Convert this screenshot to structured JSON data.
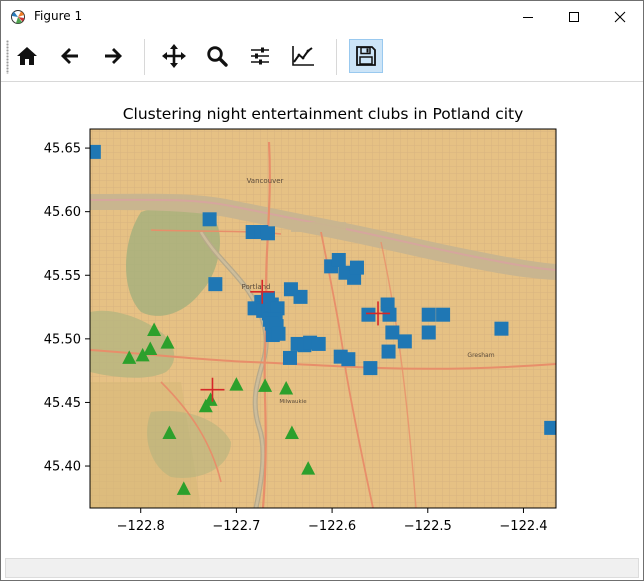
{
  "window": {
    "title": "Figure 1",
    "minimize_icon": "minimize-icon",
    "maximize_icon": "maximize-icon",
    "close_icon": "close-icon"
  },
  "toolbar": {
    "buttons": [
      {
        "name": "home-button",
        "icon": "home-icon",
        "tooltip": "Reset original view"
      },
      {
        "name": "back-button",
        "icon": "arrow-left-icon",
        "tooltip": "Back to previous view"
      },
      {
        "name": "forward-button",
        "icon": "arrow-right-icon",
        "tooltip": "Forward to next view"
      },
      {
        "name": "pan-button",
        "icon": "move-icon",
        "tooltip": "Pan axes"
      },
      {
        "name": "zoom-button",
        "icon": "magnifier-icon",
        "tooltip": "Zoom to rectangle"
      },
      {
        "name": "subplots-button",
        "icon": "sliders-icon",
        "tooltip": "Configure subplots"
      },
      {
        "name": "edit-curve-button",
        "icon": "line-chart-icon",
        "tooltip": "Edit axis, curve and image parameters"
      },
      {
        "name": "save-button",
        "icon": "floppy-disk-icon",
        "tooltip": "Save the figure"
      }
    ]
  },
  "map": {
    "labels": [
      "Vancouver",
      "Portland",
      "Milwaukie",
      "Gresham"
    ]
  },
  "chart_data": {
    "type": "scatter",
    "title": "Clustering night entertainment clubs in Potland city",
    "xlabel": "",
    "ylabel": "",
    "xlim": [
      -122.853,
      -122.366
    ],
    "ylim": [
      45.367,
      45.665
    ],
    "xticks": [
      -122.8,
      -122.7,
      -122.6,
      -122.5,
      -122.4
    ],
    "xtick_labels": [
      "−122.8",
      "−122.7",
      "−122.6",
      "−122.5",
      "−122.4"
    ],
    "yticks": [
      45.4,
      45.45,
      45.5,
      45.55,
      45.6,
      45.65
    ],
    "ytick_labels": [
      "45.40",
      "45.45",
      "45.50",
      "45.55",
      "45.60",
      "45.65"
    ],
    "grid": false,
    "legend": null,
    "background": "street map tiles",
    "series": [
      {
        "marker": "square",
        "color": "#1f77b4",
        "points": [
          [
            -122.849,
            45.647
          ],
          [
            -122.728,
            45.594
          ],
          [
            -122.722,
            45.543
          ],
          [
            -122.683,
            45.584
          ],
          [
            -122.674,
            45.584
          ],
          [
            -122.667,
            45.583
          ],
          [
            -122.674,
            45.529
          ],
          [
            -122.681,
            45.524
          ],
          [
            -122.667,
            45.532
          ],
          [
            -122.672,
            45.522
          ],
          [
            -122.666,
            45.52
          ],
          [
            -122.663,
            45.527
          ],
          [
            -122.66,
            45.523
          ],
          [
            -122.657,
            45.524
          ],
          [
            -122.665,
            45.515
          ],
          [
            -122.659,
            45.515
          ],
          [
            -122.663,
            45.512
          ],
          [
            -122.658,
            45.51
          ],
          [
            -122.662,
            45.503
          ],
          [
            -122.656,
            45.504
          ],
          [
            -122.643,
            45.539
          ],
          [
            -122.633,
            45.533
          ],
          [
            -122.644,
            45.485
          ],
          [
            -122.636,
            45.496
          ],
          [
            -122.629,
            45.495
          ],
          [
            -122.623,
            45.497
          ],
          [
            -122.614,
            45.496
          ],
          [
            -122.601,
            45.557
          ],
          [
            -122.593,
            45.562
          ],
          [
            -122.586,
            45.552
          ],
          [
            -122.577,
            45.548
          ],
          [
            -122.574,
            45.556
          ],
          [
            -122.591,
            45.486
          ],
          [
            -122.583,
            45.484
          ],
          [
            -122.56,
            45.477
          ],
          [
            -122.562,
            45.519
          ],
          [
            -122.542,
            45.527
          ],
          [
            -122.54,
            45.519
          ],
          [
            -122.537,
            45.505
          ],
          [
            -122.524,
            45.498
          ],
          [
            -122.541,
            45.49
          ],
          [
            -122.499,
            45.519
          ],
          [
            -122.499,
            45.505
          ],
          [
            -122.484,
            45.519
          ],
          [
            -122.423,
            45.508
          ],
          [
            -122.371,
            45.43
          ]
        ]
      },
      {
        "marker": "triangle",
        "color": "#2ca02c",
        "points": [
          [
            -122.786,
            45.507
          ],
          [
            -122.79,
            45.492
          ],
          [
            -122.772,
            45.497
          ],
          [
            -122.798,
            45.487
          ],
          [
            -122.812,
            45.485
          ],
          [
            -122.7,
            45.464
          ],
          [
            -122.732,
            45.447
          ],
          [
            -122.727,
            45.452
          ],
          [
            -122.67,
            45.463
          ],
          [
            -122.648,
            45.461
          ],
          [
            -122.77,
            45.426
          ],
          [
            -122.642,
            45.426
          ],
          [
            -122.625,
            45.398
          ],
          [
            -122.755,
            45.382
          ]
        ]
      }
    ],
    "centroids": {
      "marker": "plus",
      "color": "#d62728",
      "points": [
        [
          -122.673,
          45.537
        ],
        [
          -122.552,
          45.52
        ],
        [
          -122.725,
          45.46
        ]
      ]
    }
  }
}
